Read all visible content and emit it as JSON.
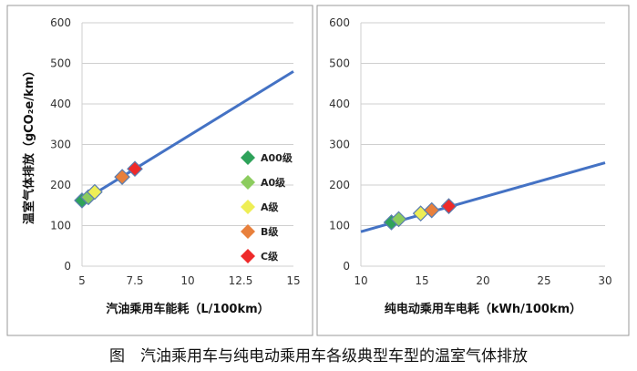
{
  "caption": "图　汽油乘用车与纯电动乘用车各级典型车型的温室气体排放",
  "colors": {
    "line": "#4472c4",
    "A00": "#2ea25a",
    "A0": "#8ccc5e",
    "A": "#eeee55",
    "B": "#e8803c",
    "C": "#ee2a2a",
    "grid": "#cfcfcf"
  },
  "chart_data": [
    {
      "type": "scatter",
      "xlabel": "汽油乘用车能耗（L/100km）",
      "ylabel": "温室气体排放（gCO₂e/km）",
      "xlim": [
        5,
        15
      ],
      "ylim": [
        0,
        600
      ],
      "xticks": [
        "5",
        "7.5",
        "10",
        "12.5",
        "15"
      ],
      "yticks": [
        "0",
        "100",
        "200",
        "300",
        "400",
        "500",
        "600"
      ],
      "grid": "horizontal",
      "legend": "right",
      "line": {
        "x": [
          5,
          15
        ],
        "y": [
          160,
          480
        ]
      },
      "series": [
        {
          "name": "A00级",
          "x": 5.0,
          "y": 162
        },
        {
          "name": "A0级",
          "x": 5.3,
          "y": 170
        },
        {
          "name": "A级",
          "x": 5.6,
          "y": 183
        },
        {
          "name": "B级",
          "x": 6.9,
          "y": 220
        },
        {
          "name": "C级",
          "x": 7.5,
          "y": 240
        }
      ]
    },
    {
      "type": "scatter",
      "xlabel": "纯电动乘用车电耗（kWh/100km）",
      "xlim": [
        10,
        30
      ],
      "ylim": [
        0,
        600
      ],
      "xticks": [
        "10",
        "15",
        "20",
        "25",
        "30"
      ],
      "yticks": [
        "0",
        "100",
        "200",
        "300",
        "400",
        "500",
        "600"
      ],
      "grid": "horizontal",
      "line": {
        "x": [
          10,
          30
        ],
        "y": [
          85,
          255
        ]
      },
      "series": [
        {
          "name": "A00级",
          "x": 12.5,
          "y": 108
        },
        {
          "name": "A0级",
          "x": 13.1,
          "y": 116
        },
        {
          "name": "A级",
          "x": 14.9,
          "y": 130
        },
        {
          "name": "B级",
          "x": 15.8,
          "y": 138
        },
        {
          "name": "C级",
          "x": 17.2,
          "y": 148
        }
      ]
    }
  ]
}
